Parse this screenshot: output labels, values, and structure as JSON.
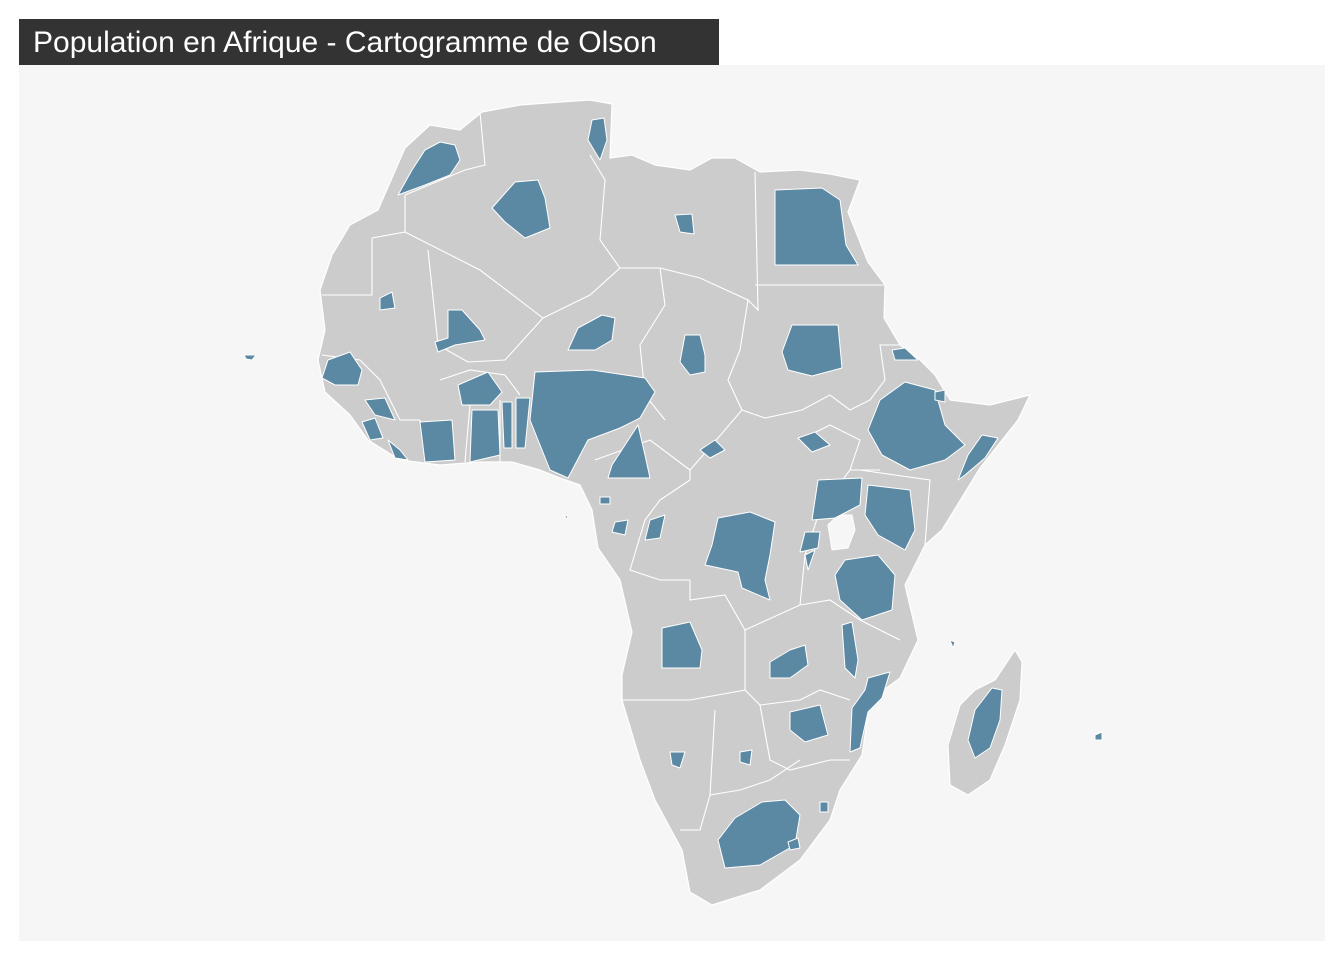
{
  "map": {
    "title": "Population en Afrique - Cartogramme de Olson",
    "colors": {
      "panel_background": "#f6f6f6",
      "land": "#cccccc",
      "borders": "#ffffff",
      "cartogram_fill": "#5b88a3",
      "title_background": "#333333",
      "title_text": "#ffffff"
    }
  }
}
